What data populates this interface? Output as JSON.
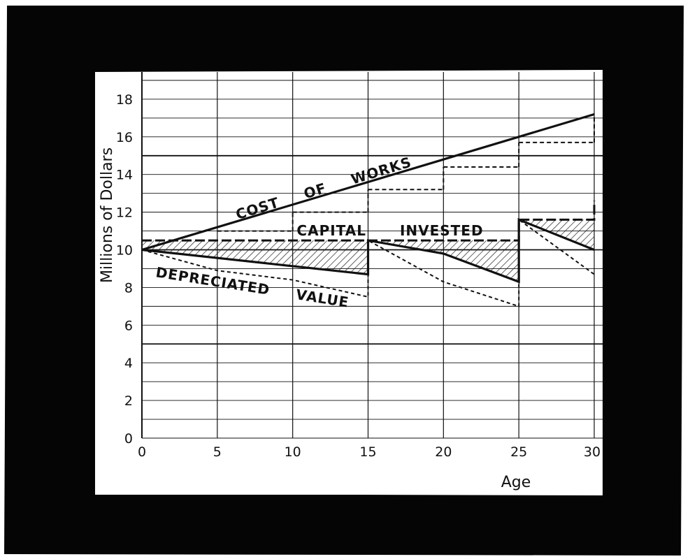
{
  "chart_data": {
    "type": "line",
    "xlabel": "Age",
    "ylabel": "Millions of Dollars",
    "xlim": [
      0,
      30
    ],
    "ylim": [
      0,
      19
    ],
    "x_ticks": [
      "0",
      "5",
      "10",
      "15",
      "20",
      "25",
      "30"
    ],
    "y_ticks": [
      "0",
      "2",
      "4",
      "6",
      "8",
      "10",
      "12",
      "14",
      "16",
      "18"
    ],
    "grid": true,
    "annotations": [
      "COST OF WORKS",
      "CAPITAL INVESTED",
      "DEPRECIATED VALUE"
    ],
    "series": [
      {
        "x": [
          0,
          30
        ],
        "y": [
          10,
          17.2
        ]
      },
      {
        "x": [
          0,
          15,
          15,
          25,
          25,
          30,
          30
        ],
        "y": [
          10.5,
          10.5,
          10.5,
          10.5,
          11.6,
          11.6,
          12.6
        ]
      },
      {
        "x": [
          0,
          15,
          15,
          20,
          25,
          25,
          30
        ],
        "y": [
          10,
          8.7,
          10.5,
          9.8,
          8.3,
          11.6,
          10.0
        ]
      },
      {
        "x": [
          0,
          5,
          10,
          15,
          15,
          20,
          25,
          25,
          30
        ],
        "y": [
          10,
          8.9,
          8.4,
          7.5,
          10.5,
          8.3,
          7.0,
          11.6,
          8.7
        ]
      },
      {
        "x": [
          5,
          10,
          15,
          20,
          25,
          30
        ],
        "y": [
          11.0,
          12.0,
          13.2,
          14.4,
          15.7,
          17.2
        ]
      }
    ]
  }
}
